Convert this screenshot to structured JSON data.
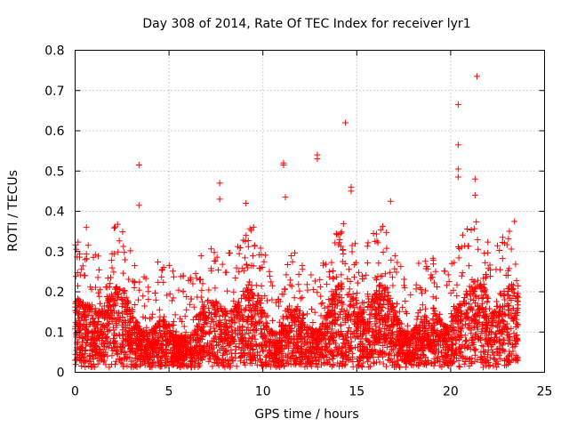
{
  "chart_data": {
    "type": "scatter",
    "title": "Day 308 of 2014, Rate Of TEC Index for receiver lyr1",
    "xlabel": "GPS time / hours",
    "ylabel": "ROTI / TECUs",
    "xlim": [
      0,
      25
    ],
    "ylim": [
      0,
      0.8
    ],
    "xticks": [
      "0",
      "5",
      "10",
      "15",
      "20",
      "25"
    ],
    "yticks": [
      "0",
      "0.1",
      "0.2",
      "0.3",
      "0.4",
      "0.5",
      "0.6",
      "0.7",
      "0.8"
    ],
    "grid": true,
    "marker": "+",
    "color": "#ff0000",
    "dense_band": {
      "x_range": [
        0,
        23.6
      ],
      "baseline_range": [
        0.0,
        0.2
      ],
      "upper_envelope_typical": 0.28
    },
    "notable_points": [
      {
        "x": 0.6,
        "y": 0.36
      },
      {
        "x": 3.4,
        "y": 0.515
      },
      {
        "x": 3.4,
        "y": 0.415
      },
      {
        "x": 7.7,
        "y": 0.47
      },
      {
        "x": 7.7,
        "y": 0.43
      },
      {
        "x": 11.1,
        "y": 0.52
      },
      {
        "x": 11.1,
        "y": 0.515
      },
      {
        "x": 11.2,
        "y": 0.435
      },
      {
        "x": 12.9,
        "y": 0.54
      },
      {
        "x": 12.9,
        "y": 0.53
      },
      {
        "x": 14.4,
        "y": 0.62
      },
      {
        "x": 14.7,
        "y": 0.46
      },
      {
        "x": 14.7,
        "y": 0.45
      },
      {
        "x": 20.4,
        "y": 0.665
      },
      {
        "x": 20.4,
        "y": 0.565
      },
      {
        "x": 20.4,
        "y": 0.505
      },
      {
        "x": 20.4,
        "y": 0.485
      },
      {
        "x": 21.3,
        "y": 0.48
      },
      {
        "x": 21.4,
        "y": 0.735
      },
      {
        "x": 21.3,
        "y": 0.44
      },
      {
        "x": 16.8,
        "y": 0.425
      },
      {
        "x": 9.1,
        "y": 0.42
      },
      {
        "x": 23.4,
        "y": 0.375
      }
    ]
  }
}
